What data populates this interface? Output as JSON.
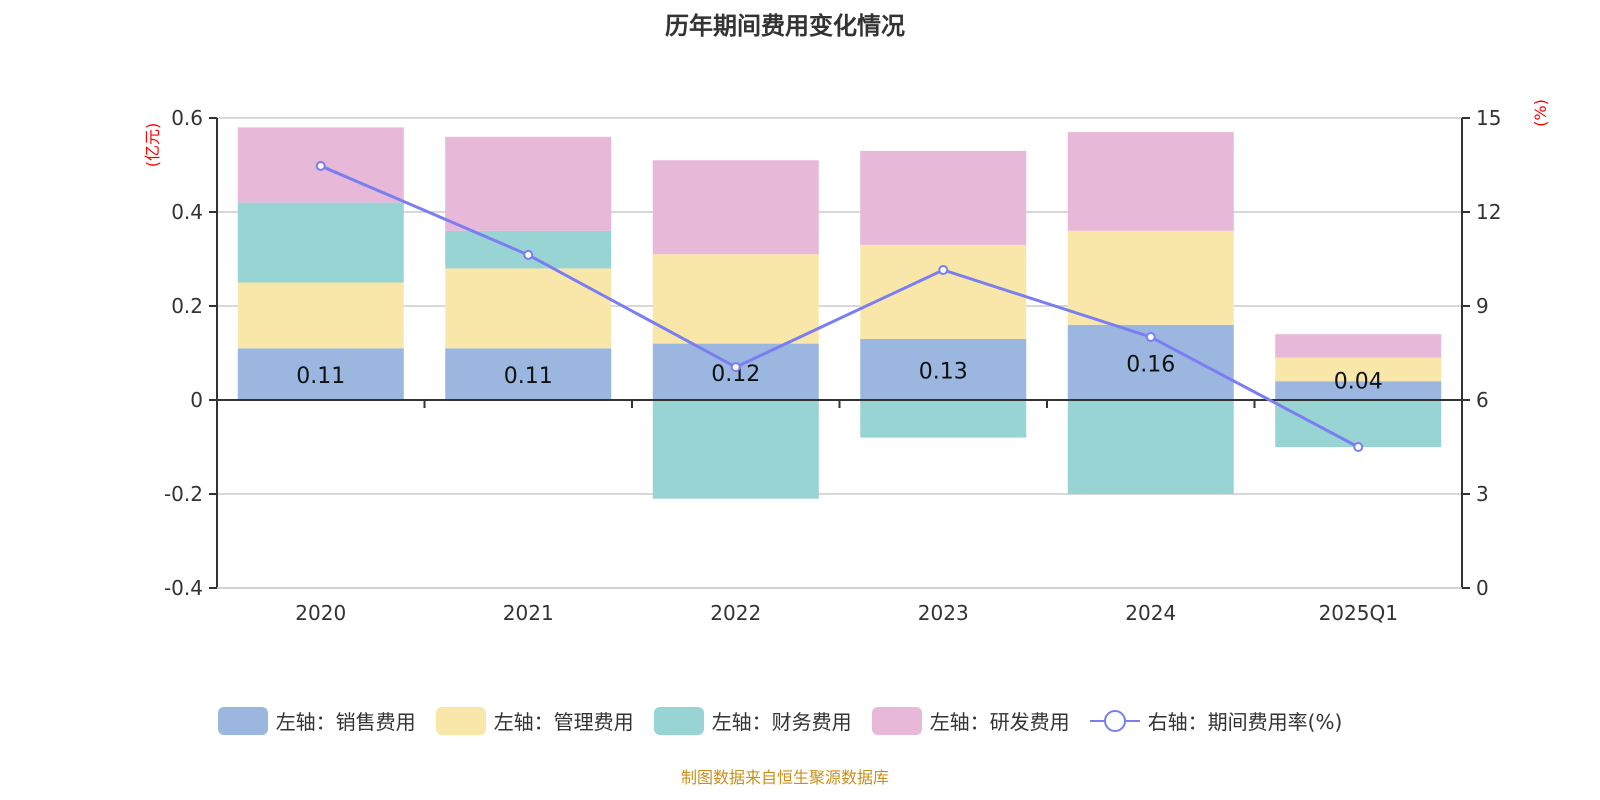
{
  "chart_data": {
    "type": "bar",
    "title": "历年期间费用变化情况",
    "categories": [
      "2020",
      "2021",
      "2022",
      "2023",
      "2024",
      "2025Q1"
    ],
    "left_axis": {
      "label": "(亿元)",
      "range": [
        -0.4,
        0.6
      ],
      "ticks": [
        "-0.4",
        "-0.2",
        "0",
        "0.2",
        "0.4",
        "0.6"
      ]
    },
    "right_axis": {
      "label": "(%)",
      "range": [
        0,
        15
      ],
      "ticks": [
        "0",
        "3",
        "6",
        "9",
        "12",
        "15"
      ]
    },
    "series": [
      {
        "name": "左轴：销售费用",
        "color": "#9bb7e0",
        "values": [
          0.11,
          0.11,
          0.12,
          0.13,
          0.16,
          0.04
        ],
        "labels": [
          "0.11",
          "0.11",
          "0.12",
          "0.13",
          "0.16",
          "0.04"
        ]
      },
      {
        "name": "左轴：管理费用",
        "color": "#f8e7a9",
        "values": [
          0.14,
          0.17,
          0.19,
          0.2,
          0.2,
          0.05
        ]
      },
      {
        "name": "左轴：财务费用",
        "color": "#98d4d4",
        "values": [
          0.17,
          0.08,
          -0.21,
          -0.08,
          -0.2,
          -0.1
        ]
      },
      {
        "name": "左轴：研发费用",
        "color": "#e7b8d8",
        "values": [
          0.16,
          0.2,
          0.2,
          0.2,
          0.21,
          0.05
        ]
      },
      {
        "name": "右轴：期间费用率(%)",
        "color": "#7b7ef0",
        "type": "line",
        "axis": "right",
        "values": [
          13.47,
          10.63,
          7.05,
          10.15,
          8.01,
          4.5
        ]
      }
    ],
    "grid": true,
    "legend_position": "bottom"
  },
  "source": "制图数据来自恒生聚源数据库"
}
